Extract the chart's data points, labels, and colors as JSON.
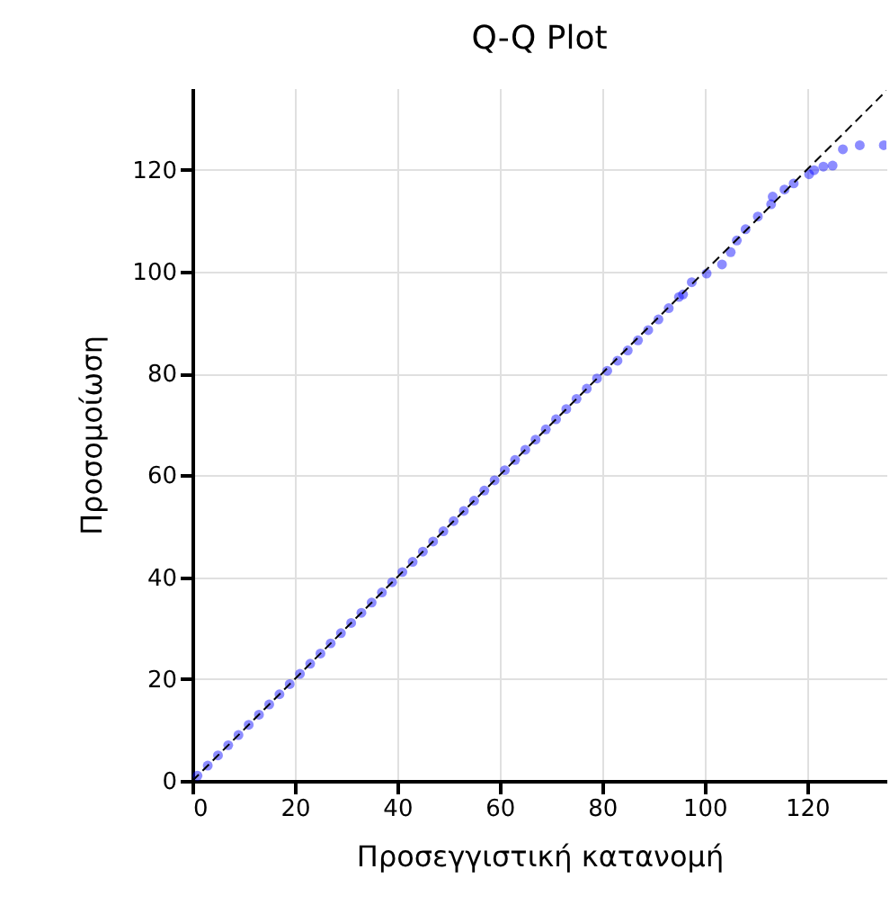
{
  "chart_data": {
    "type": "scatter",
    "title": "Q-Q Plot",
    "xlabel": "Προσεγγιστική κατανομή",
    "ylabel": "Προσομοίωση",
    "xlim": [
      0,
      135.5
    ],
    "ylim": [
      0,
      136
    ],
    "xticks": [
      0,
      20,
      40,
      60,
      80,
      100,
      120
    ],
    "yticks": [
      0,
      20,
      40,
      60,
      80,
      100,
      120
    ],
    "grid": true,
    "marker": "circle",
    "series": [
      {
        "color": "#0000ff",
        "x": [
          1,
          3,
          5,
          7,
          9,
          11,
          13,
          15,
          17,
          19,
          21,
          23,
          25,
          27,
          29,
          31,
          33,
          35,
          37,
          39,
          41,
          43,
          45,
          47,
          49,
          51,
          53,
          55,
          57,
          59,
          61,
          63,
          65,
          67,
          69,
          71,
          73,
          75,
          77,
          79,
          81,
          83,
          85,
          87,
          89,
          91,
          93,
          95,
          95.8,
          97.5,
          100.4,
          103.4,
          105.1,
          106.3,
          108,
          110.4,
          113,
          113.3,
          115.6,
          117.4,
          120.4,
          121.4,
          123.2,
          125,
          127,
          130.3,
          135
        ],
        "values": [
          1,
          3,
          5,
          7,
          9,
          11,
          13,
          15,
          17,
          19,
          21,
          23,
          25,
          27,
          29,
          31,
          33,
          35,
          37,
          39,
          41,
          43,
          45,
          47,
          49,
          51,
          53,
          55,
          57,
          59,
          61,
          63,
          65,
          67,
          69,
          71,
          73,
          75,
          77,
          79,
          80.5,
          82.5,
          84.5,
          86.5,
          88.5,
          90.6,
          92.8,
          95,
          95.5,
          97.9,
          99.6,
          101.4,
          103.8,
          106.1,
          108.3,
          110.8,
          113.2,
          114.7,
          116.1,
          117.3,
          119.1,
          119.9,
          120.6,
          120.8,
          124,
          124.8,
          124.8
        ]
      },
      {
        "type": "line",
        "color": "#000000",
        "line_style": "dashed",
        "marker": "none",
        "x": [
          0,
          135.5
        ],
        "values": [
          0,
          135.5
        ]
      }
    ]
  }
}
